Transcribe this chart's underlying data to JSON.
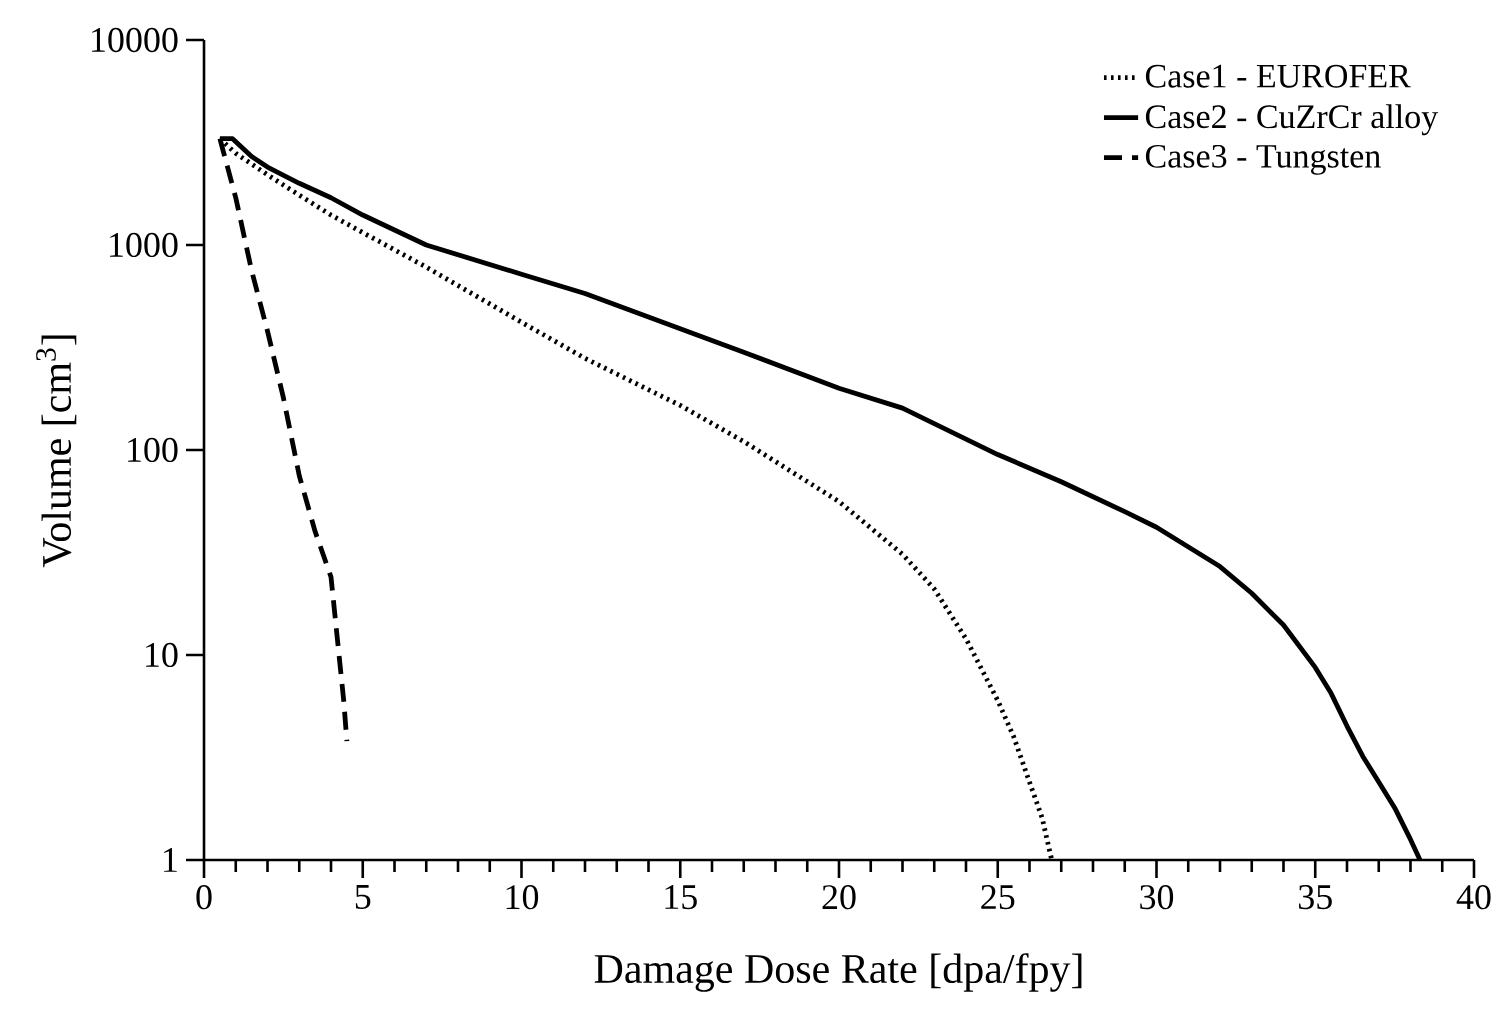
{
  "chart_data": {
    "type": "line",
    "xlabel": "Damage Dose Rate [dpa/fpy]",
    "ylabel": "Volume [cm$^{3}$]",
    "log": "y",
    "xlim": [
      0,
      40
    ],
    "ylim": [
      1,
      10000
    ],
    "xticks": [
      0,
      5,
      10,
      15,
      20,
      25,
      30,
      35,
      40
    ],
    "yticks": [
      1,
      10,
      100,
      1000,
      10000
    ],
    "legend": "top right",
    "grid": false,
    "marker": "none",
    "series": [
      {
        "name": "Case1 - EUROFER",
        "color": "#000000",
        "line_style": "dotted",
        "x": [
          0.5,
          1,
          2,
          3,
          4,
          5,
          7,
          10,
          12,
          15,
          17,
          20,
          22,
          23,
          24,
          25,
          25.5,
          26,
          26.4,
          26.7
        ],
        "values": [
          3300,
          2800,
          2200,
          1750,
          1400,
          1150,
          780,
          420,
          280,
          165,
          110,
          56,
          31,
          21,
          12,
          6,
          4,
          2.4,
          1.6,
          1
        ]
      },
      {
        "name": "Case2 - CuZrCr alloy",
        "color": "#000000",
        "line_style": "solid",
        "x": [
          0.5,
          0.9,
          1.5,
          2,
          3,
          4,
          5,
          7,
          10,
          12,
          15,
          17,
          20,
          22,
          25,
          27,
          29,
          30,
          32,
          33,
          34,
          35,
          35.5,
          36,
          36.5,
          37,
          37.5,
          38,
          38.3
        ],
        "values": [
          3300,
          3300,
          2700,
          2400,
          2000,
          1700,
          1400,
          1000,
          720,
          580,
          390,
          300,
          200,
          160,
          95,
          70,
          50,
          42,
          27,
          20,
          14,
          8.7,
          6.5,
          4.5,
          3.2,
          2.4,
          1.8,
          1.26,
          1
        ]
      },
      {
        "name": "Case3 - Tungsten",
        "color": "#000000",
        "line_style": "dashed",
        "x": [
          0.5,
          1,
          1.5,
          2,
          2.5,
          3,
          3.5,
          4,
          4.2,
          4.4,
          4.5
        ],
        "values": [
          3300,
          1700,
          750,
          380,
          180,
          75,
          40,
          24,
          12,
          6,
          3.8
        ]
      }
    ]
  }
}
